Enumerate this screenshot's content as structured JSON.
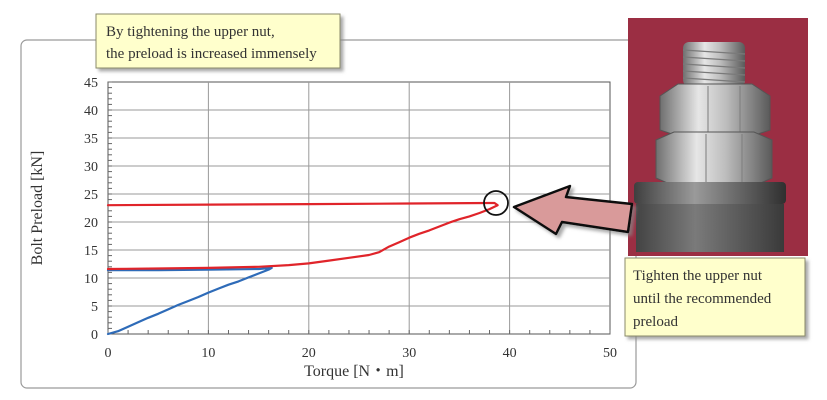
{
  "chart_data": {
    "type": "line",
    "xlabel": "Torque [N・m]",
    "ylabel": "Bolt Preload [kN]",
    "xlim": [
      0,
      50
    ],
    "ylim": [
      0,
      45
    ],
    "xticks": [
      "0",
      "10",
      "20",
      "30",
      "40",
      "50"
    ],
    "yticks": [
      "0",
      "5",
      "10",
      "15",
      "20",
      "25",
      "30",
      "35",
      "40",
      "45"
    ],
    "grid": true,
    "series": [
      {
        "color": "#2e6bb8",
        "points": [
          [
            0,
            0
          ],
          [
            1,
            0.5
          ],
          [
            2,
            1.3
          ],
          [
            3,
            2.1
          ],
          [
            4,
            2.9
          ],
          [
            5,
            3.6
          ],
          [
            6,
            4.4
          ],
          [
            7,
            5.2
          ],
          [
            8,
            5.9
          ],
          [
            9,
            6.6
          ],
          [
            10,
            7.4
          ],
          [
            11,
            8.1
          ],
          [
            12,
            8.8
          ],
          [
            13,
            9.4
          ],
          [
            14,
            10.1
          ],
          [
            15,
            10.8
          ],
          [
            16,
            11.5
          ],
          [
            16.3,
            11.8
          ],
          [
            15,
            11.6
          ],
          [
            10,
            11.5
          ],
          [
            5,
            11.4
          ],
          [
            0,
            11.4
          ]
        ]
      },
      {
        "color": "#e0242a",
        "points": [
          [
            0,
            11.6
          ],
          [
            5,
            11.7
          ],
          [
            10,
            11.8
          ],
          [
            15,
            12.0
          ],
          [
            18,
            12.3
          ],
          [
            20,
            12.6
          ],
          [
            22,
            13.1
          ],
          [
            24,
            13.6
          ],
          [
            26,
            14.1
          ],
          [
            27,
            14.6
          ],
          [
            28,
            15.6
          ],
          [
            29,
            16.4
          ],
          [
            30,
            17.2
          ],
          [
            31,
            17.9
          ],
          [
            32,
            18.5
          ],
          [
            33,
            19.2
          ],
          [
            34,
            19.9
          ],
          [
            35,
            20.5
          ],
          [
            36,
            21.0
          ],
          [
            37,
            21.6
          ],
          [
            38,
            22.3
          ],
          [
            38.8,
            23.0
          ],
          [
            38.5,
            23.4
          ],
          [
            38,
            23.4
          ],
          [
            30,
            23.3
          ],
          [
            20,
            23.2
          ],
          [
            10,
            23.1
          ],
          [
            0,
            23.0
          ]
        ]
      }
    ]
  },
  "callouts": {
    "top_line1": "By tightening the upper nut,",
    "top_line2": "the preload is increased immensely",
    "right_line1": "Tighten the upper nut",
    "right_line2": "until the recommended",
    "right_line3": "preload"
  },
  "colors": {
    "red": "#e0242a",
    "blue": "#2e6bb8",
    "callout_bg": "#ffffcc",
    "arrow_fill": "#d99a9a",
    "photo_bg": "#9b2e43"
  }
}
